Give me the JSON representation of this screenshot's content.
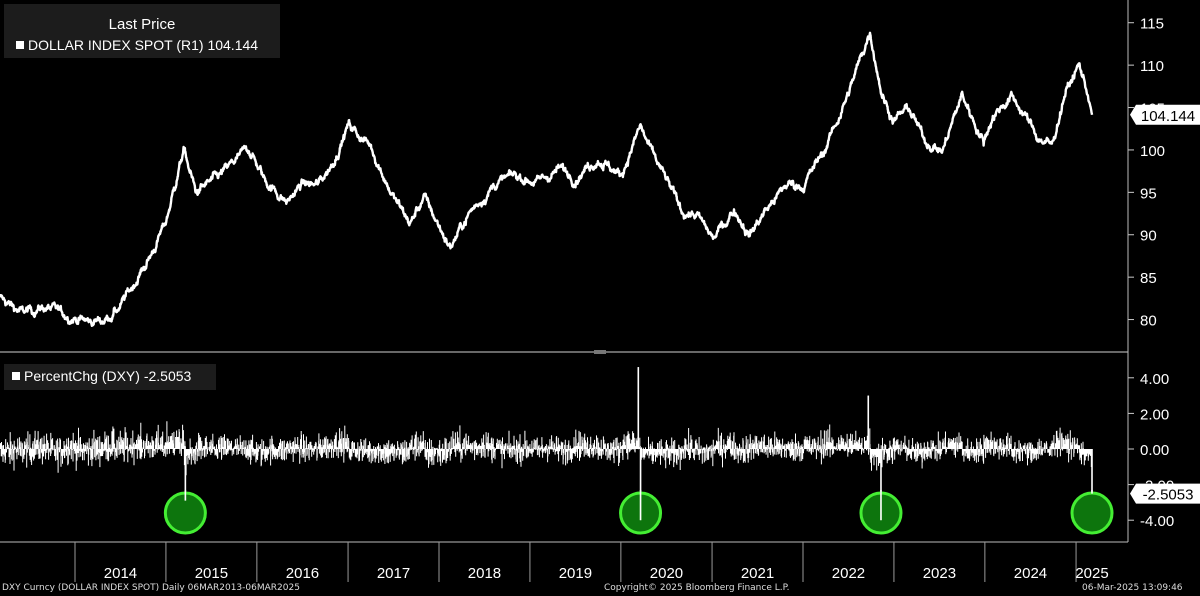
{
  "legend": {
    "title": "Last Price",
    "price_series_label": "DOLLAR INDEX SPOT  (R1) 104.144",
    "pct_series_label": "PercentChg (DXY) -2.5053"
  },
  "footer": {
    "left": "DXY Curncy (DOLLAR INDEX SPOT)  Daily 06MAR2013-06MAR2025",
    "center": "Copyright© 2025 Bloomberg Finance L.P.",
    "right": "06-Mar-2025 13:09:46"
  },
  "colors": {
    "background": "#000000",
    "line": "#ffffff",
    "highlight_fill": "#0f8a0f",
    "highlight_stroke": "#44ee33",
    "legend_bg": "#1c1c1c"
  },
  "chart_data": [
    {
      "type": "line",
      "title": "Last Price",
      "series": [
        {
          "name": "DOLLAR INDEX SPOT",
          "x": [
            "2013-03-06",
            "2013-06-01",
            "2013-09-01",
            "2013-12-01",
            "2014-03-01",
            "2014-05-01",
            "2014-07-01",
            "2014-09-01",
            "2014-11-01",
            "2015-01-01",
            "2015-03-13",
            "2015-05-01",
            "2015-08-01",
            "2015-11-30",
            "2016-02-01",
            "2016-05-01",
            "2016-07-01",
            "2016-09-01",
            "2016-11-01",
            "2017-01-03",
            "2017-04-01",
            "2017-07-01",
            "2017-09-08",
            "2017-11-01",
            "2018-02-15",
            "2018-05-01",
            "2018-08-15",
            "2018-11-01",
            "2019-02-01",
            "2019-05-01",
            "2019-07-01",
            "2019-10-01",
            "2020-01-01",
            "2020-03-19",
            "2020-05-01",
            "2020-07-01",
            "2020-09-01",
            "2020-11-01",
            "2021-01-06",
            "2021-04-01",
            "2021-06-01",
            "2021-08-01",
            "2021-11-01",
            "2022-01-03",
            "2022-04-01",
            "2022-07-01",
            "2022-09-27",
            "2022-11-15",
            "2023-01-01",
            "2023-03-01",
            "2023-05-01",
            "2023-07-14",
            "2023-10-01",
            "2023-12-27",
            "2024-02-01",
            "2024-04-16",
            "2024-06-01",
            "2024-08-01",
            "2024-09-27",
            "2024-11-15",
            "2025-01-13",
            "2025-02-15",
            "2025-03-06"
          ],
          "values": [
            82.5,
            80.8,
            81.5,
            80.5,
            79.7,
            80.0,
            81.5,
            84.5,
            87.5,
            91.5,
            100.0,
            95.0,
            96.8,
            100.2,
            96.5,
            93.8,
            96.0,
            95.8,
            98.5,
            103.0,
            100.5,
            94.5,
            91.3,
            94.5,
            88.5,
            92.5,
            96.0,
            97.0,
            96.2,
            97.8,
            96.8,
            99.0,
            97.0,
            102.8,
            99.8,
            96.5,
            92.8,
            92.3,
            89.5,
            93.0,
            90.0,
            92.8,
            96.0,
            95.8,
            100.2,
            106.5,
            114.0,
            106.5,
            103.5,
            105.0,
            101.3,
            99.8,
            106.5,
            101.0,
            104.0,
            106.3,
            104.5,
            101.5,
            100.5,
            106.5,
            110.0,
            107.0,
            104.144
          ]
        }
      ],
      "ylim": [
        77,
        116.5
      ],
      "yticks": [
        80,
        85,
        90,
        95,
        100,
        105,
        110,
        115
      ],
      "last_value_label": "104.144"
    },
    {
      "type": "bar",
      "title": "PercentChg (DXY)",
      "series": [
        {
          "name": "PercentChg (DXY)",
          "spikes": [
            {
              "x": "2015-03-20",
              "value": -2.9
            },
            {
              "x": "2020-03-11",
              "value": 4.6
            },
            {
              "x": "2020-03-20",
              "value": -4.0
            },
            {
              "x": "2022-09-20",
              "value": 3.0
            },
            {
              "x": "2022-11-10",
              "value": -4.0
            },
            {
              "x": "2025-03-06",
              "value": -2.5053
            }
          ],
          "last_value": -2.5053
        }
      ],
      "ylim": [
        -5,
        5
      ],
      "yticks": [
        "4.00",
        "2.00",
        "0.00",
        "-2.00",
        "-4.00"
      ],
      "last_value_label": "-2.5053",
      "highlighted_dates": [
        "2015-03-20",
        "2020-03-20",
        "2022-11-10",
        "2025-03-06"
      ]
    }
  ],
  "x_axis": {
    "labels": [
      "2014",
      "2015",
      "2016",
      "2017",
      "2018",
      "2019",
      "2020",
      "2021",
      "2022",
      "2023",
      "2024",
      "2025"
    ]
  }
}
